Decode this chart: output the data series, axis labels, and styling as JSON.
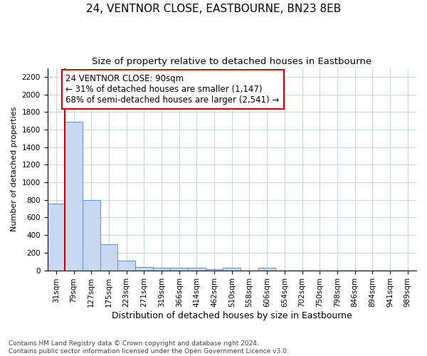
{
  "title": "24, VENTNOR CLOSE, EASTBOURNE, BN23 8EB",
  "subtitle": "Size of property relative to detached houses in Eastbourne",
  "xlabel": "Distribution of detached houses by size in Eastbourne",
  "ylabel": "Number of detached properties",
  "bar_labels": [
    "31sqm",
    "79sqm",
    "127sqm",
    "175sqm",
    "223sqm",
    "271sqm",
    "319sqm",
    "366sqm",
    "414sqm",
    "462sqm",
    "510sqm",
    "558sqm",
    "606sqm",
    "654sqm",
    "702sqm",
    "750sqm",
    "798sqm",
    "846sqm",
    "894sqm",
    "941sqm",
    "989sqm"
  ],
  "bar_values": [
    760,
    1690,
    800,
    300,
    110,
    40,
    30,
    30,
    30,
    15,
    30,
    0,
    30,
    0,
    0,
    0,
    0,
    0,
    0,
    0,
    0
  ],
  "bar_color": "#c8d8f0",
  "bar_edge_color": "#6090d0",
  "highlight_line_color": "#cc0000",
  "annotation_box_color": "#cc0000",
  "annotation_text": "24 VENTNOR CLOSE: 90sqm\n← 31% of detached houses are smaller (1,147)\n68% of semi-detached houses are larger (2,541) →",
  "ylim": [
    0,
    2300
  ],
  "yticks": [
    0,
    200,
    400,
    600,
    800,
    1000,
    1200,
    1400,
    1600,
    1800,
    2000,
    2200
  ],
  "grid_color": "#c8d4e8",
  "footnote": "Contains HM Land Registry data © Crown copyright and database right 2024.\nContains public sector information licensed under the Open Government Licence v3.0.",
  "title_fontsize": 11,
  "subtitle_fontsize": 9.5,
  "xlabel_fontsize": 9,
  "ylabel_fontsize": 8,
  "tick_fontsize": 7.5,
  "annotation_fontsize": 8.5,
  "footnote_fontsize": 6.5,
  "fig_width": 6.0,
  "fig_height": 5.0,
  "dpi": 100
}
